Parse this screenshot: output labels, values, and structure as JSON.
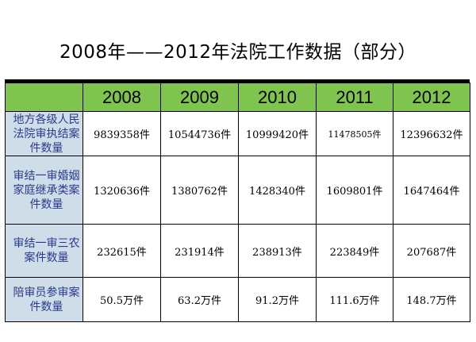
{
  "title": "2008年——2012年法院工作数据（部分）",
  "columns": [
    "2008",
    "2009",
    "2010",
    "2011",
    "2012"
  ],
  "rows": [
    {
      "label": "地方各级人民法院审执结案件数量",
      "values": [
        "9839358件",
        "10544736件",
        "10999420件",
        "11478505件",
        "12396632件"
      ]
    },
    {
      "label": "审结一审婚姻家庭继承类案件数量",
      "values": [
        "1320636件",
        "1380762件",
        "1428340件",
        "1609801件",
        "1647464件"
      ]
    },
    {
      "label": "审结一审三农案件数量",
      "values": [
        "232615件",
        "231914件",
        "238913件",
        "223849件",
        "207687件"
      ]
    },
    {
      "label": "陪审员参审案件数量",
      "values": [
        "50.5万件",
        "63.2万件",
        "91.2万件",
        "111.6万件",
        "148.7万件"
      ]
    }
  ],
  "colors": {
    "header_bg": "#7fc44e",
    "label_bg": "#cfdde8",
    "label_text": "#2a3a8c"
  }
}
